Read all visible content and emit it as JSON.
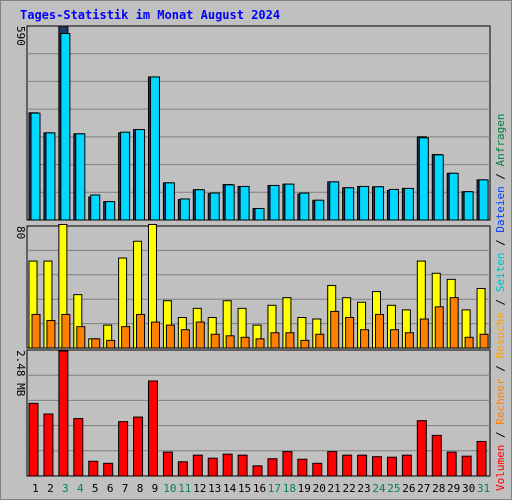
{
  "chart_data": [
    {
      "type": "bar",
      "title": "Tages-Statistik im Monat August 2024",
      "axis_max_label": "590",
      "ylim": [
        0,
        590
      ],
      "categories": [
        "1",
        "2",
        "3",
        "4",
        "5",
        "6",
        "7",
        "8",
        "9",
        "10",
        "11",
        "12",
        "13",
        "14",
        "15",
        "16",
        "17",
        "18",
        "19",
        "20",
        "21",
        "22",
        "23",
        "24",
        "25",
        "26",
        "27",
        "28",
        "29",
        "30",
        "31"
      ],
      "weekend_days": [
        "3",
        "4",
        "10",
        "11",
        "17",
        "18",
        "24",
        "25",
        "31"
      ],
      "series": [
        {
          "name": "Anfragen",
          "color": "#1e3a5f",
          "values": [
            326,
            265,
            590,
            262,
            70,
            56,
            265,
            275,
            435,
            113,
            62,
            92,
            80,
            108,
            102,
            35,
            105,
            109,
            79,
            60,
            116,
            98,
            102,
            101,
            90,
            96,
            253,
            199,
            142,
            86,
            122
          ]
        },
        {
          "name": "Dateien",
          "color": "#00d8ff",
          "values": [
            325,
            265,
            567,
            262,
            76,
            56,
            267,
            275,
            435,
            113,
            64,
            92,
            82,
            107,
            102,
            35,
            105,
            109,
            82,
            60,
            116,
            98,
            102,
            101,
            93,
            96,
            250,
            198,
            142,
            86,
            122
          ]
        }
      ]
    },
    {
      "type": "bar",
      "axis_max_label": "80",
      "ylim": [
        0,
        80
      ],
      "series": [
        {
          "name": "Seiten",
          "color": "#ffff00",
          "values": [
            57,
            57,
            81,
            35,
            6,
            15,
            59,
            70,
            81,
            31,
            20,
            26,
            20,
            31,
            26,
            15,
            28,
            33,
            20,
            19,
            41,
            33,
            30,
            37,
            28,
            25,
            57,
            49,
            45,
            25,
            39
          ]
        },
        {
          "name": "Besuche",
          "color": "#ff8000",
          "values": [
            22,
            18,
            22,
            14,
            6,
            5,
            14,
            22,
            17,
            15,
            12,
            17,
            9,
            8,
            7,
            6,
            10,
            10,
            5,
            9,
            24,
            20,
            12,
            22,
            12,
            10,
            19,
            27,
            33,
            7,
            9
          ]
        }
      ]
    },
    {
      "type": "bar",
      "axis_max_label": "2.48 MB",
      "ylim": [
        0,
        2.48
      ],
      "series": [
        {
          "name": "Volumen",
          "color": "#ff0000",
          "values": [
            1.43,
            1.22,
            2.46,
            1.13,
            0.29,
            0.25,
            1.07,
            1.16,
            1.87,
            0.47,
            0.28,
            0.41,
            0.35,
            0.43,
            0.41,
            0.2,
            0.34,
            0.48,
            0.33,
            0.25,
            0.48,
            0.41,
            0.41,
            0.38,
            0.37,
            0.41,
            1.09,
            0.8,
            0.47,
            0.39,
            0.68
          ]
        }
      ]
    }
  ],
  "legend": {
    "items": [
      {
        "label": "Anfragen",
        "color": "#008040"
      },
      {
        "label": "Dateien",
        "color": "#0040ff"
      },
      {
        "label": "Seiten",
        "color": "#00c0c0"
      },
      {
        "label": "Besuche",
        "color": "#ffa000"
      },
      {
        "label": "Rechner",
        "color": "#ff8000"
      },
      {
        "label": "Volumen",
        "color": "#ff0000"
      }
    ],
    "separator": "/"
  },
  "colors": {
    "background": "#c0c0c0",
    "title": "#0000ff",
    "weekday_label": "#000000",
    "weekend_label": "#00805f",
    "gridline": "#808080"
  }
}
